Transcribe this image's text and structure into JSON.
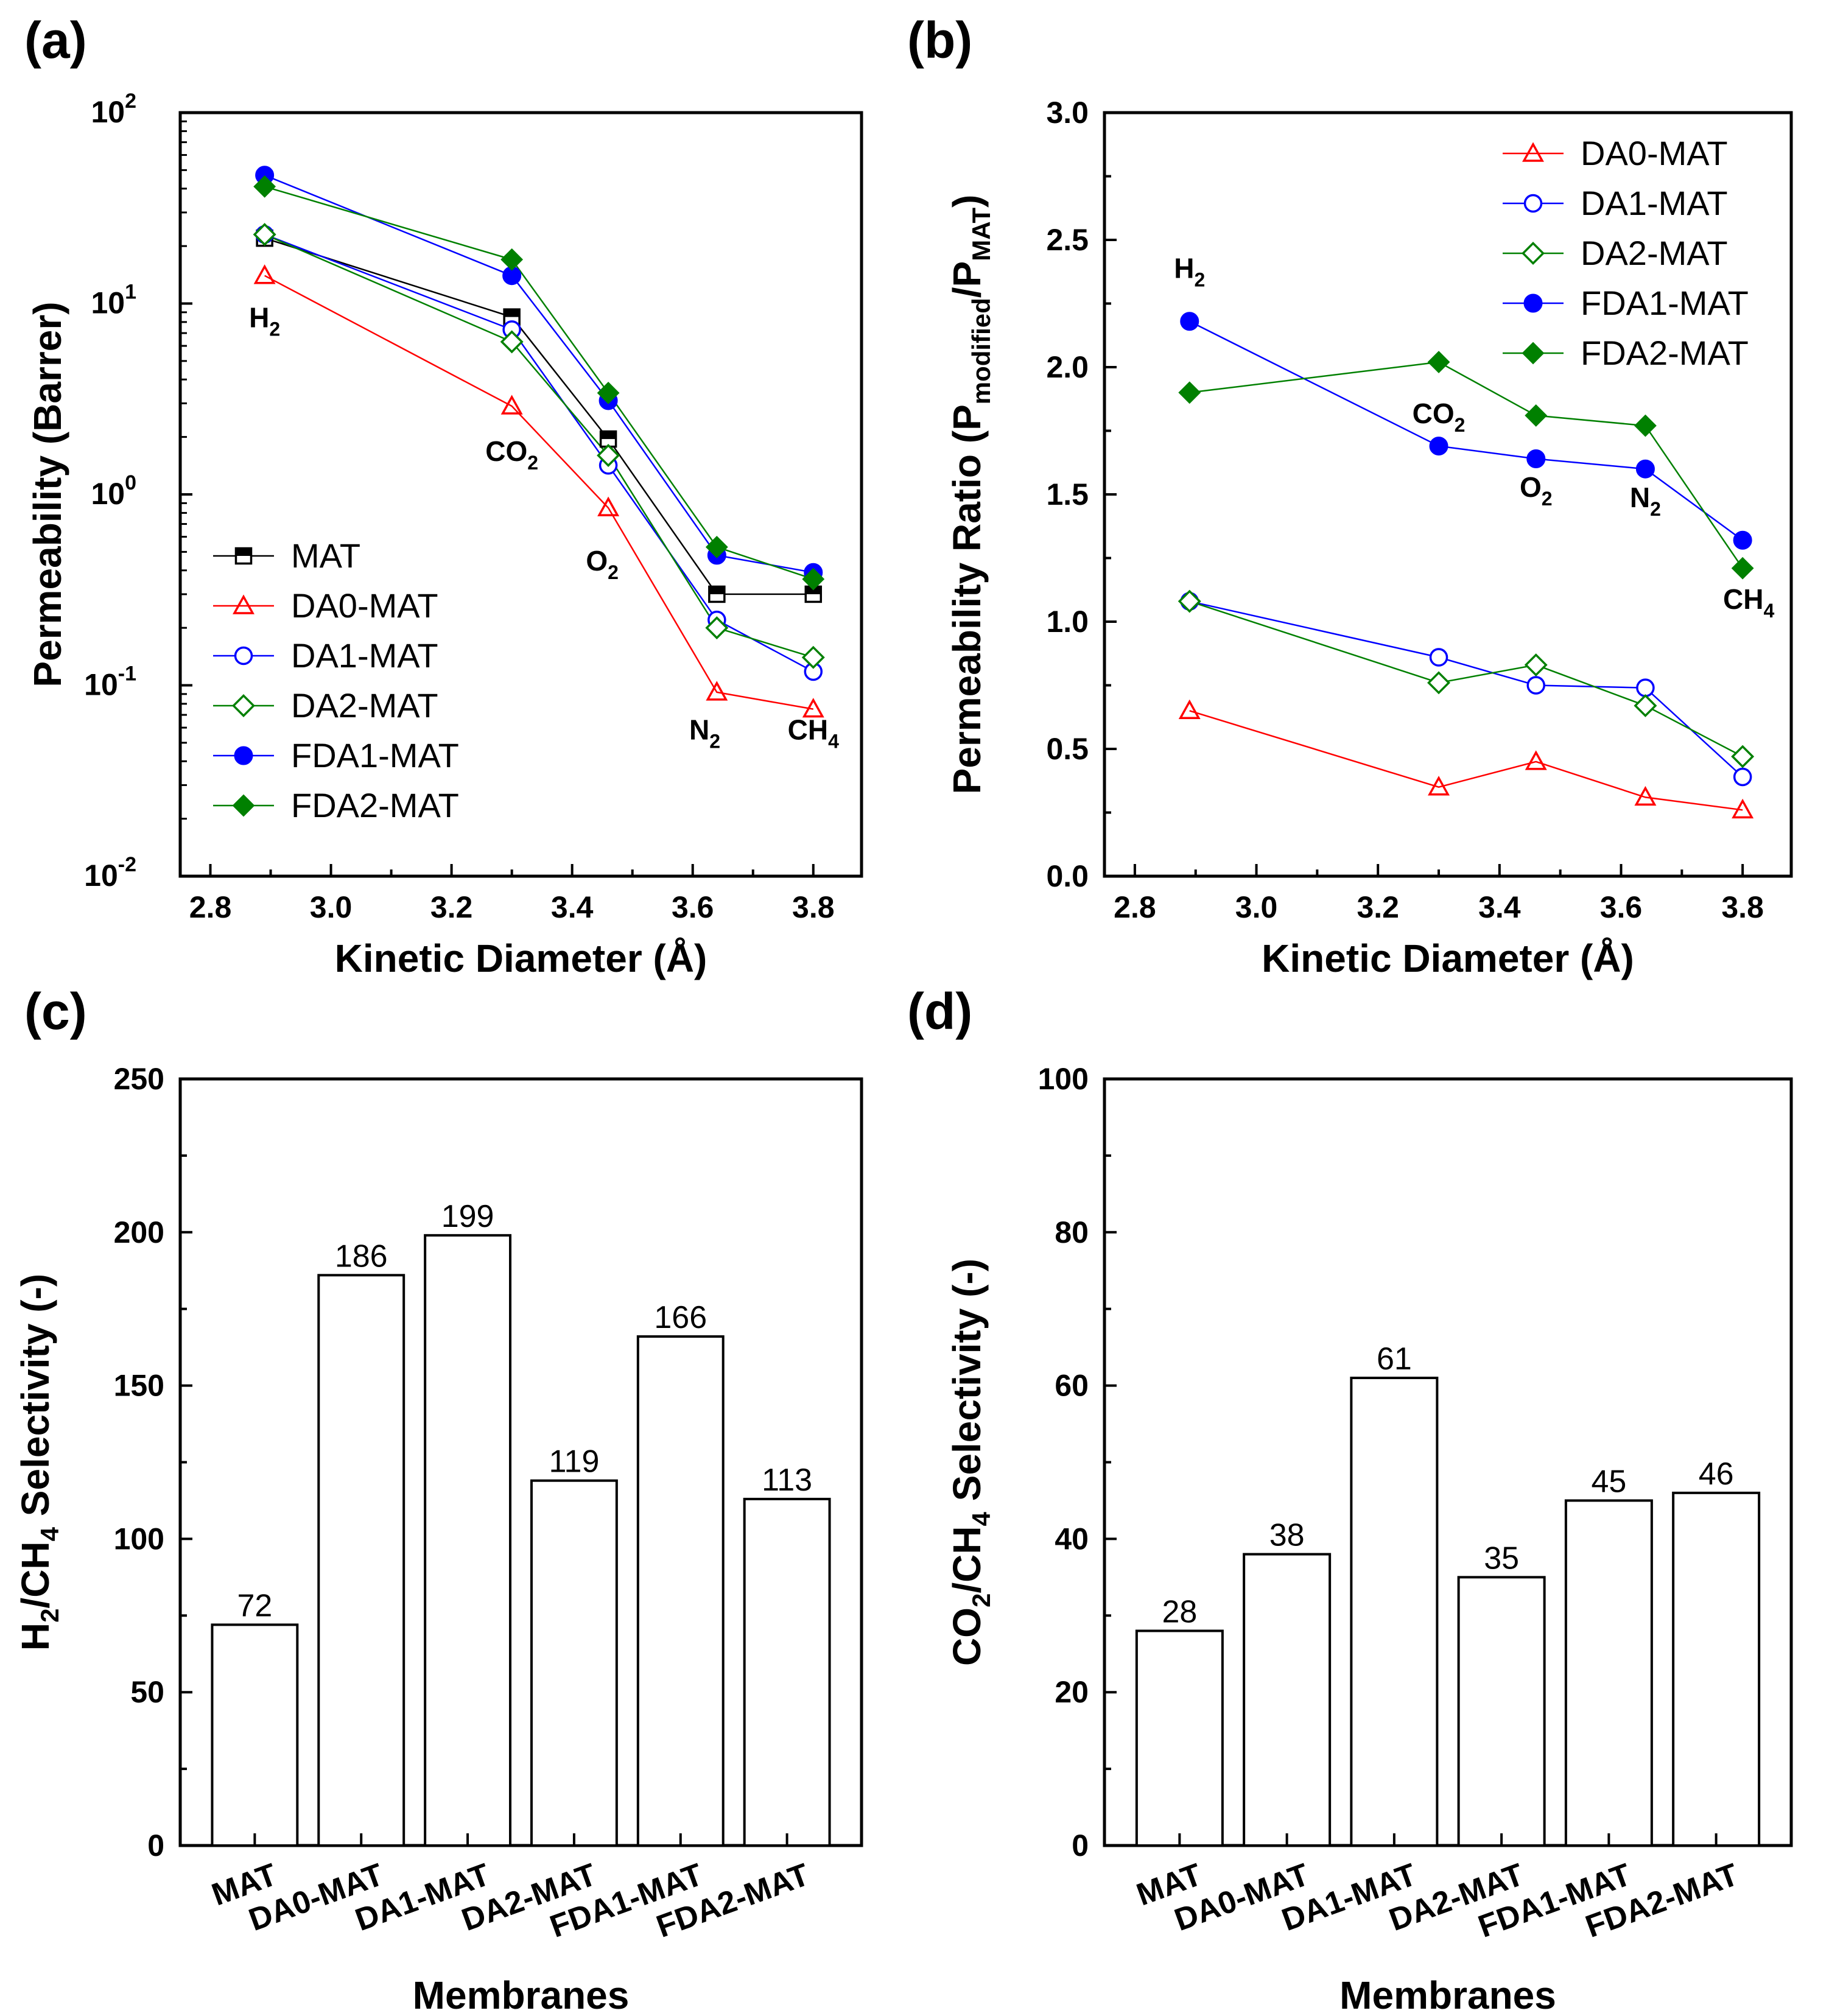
{
  "chart_data": [
    {
      "panel": "(a)",
      "type": "line",
      "ylabel": "Permeability (Barrer)",
      "xlabel": "Kinetic Diameter (Å)",
      "xlim": [
        2.75,
        3.88
      ],
      "ylim": [
        0.01,
        100
      ],
      "yscale": "log",
      "xticks": [
        "2.8",
        "3.0",
        "3.2",
        "3.4",
        "3.6",
        "3.8"
      ],
      "yticks": [
        {
          "value": 0.01,
          "base": "10",
          "exp": "-2"
        },
        {
          "value": 0.1,
          "base": "10",
          "exp": "-1"
        },
        {
          "value": 1,
          "base": "10",
          "exp": "0"
        },
        {
          "value": 10,
          "base": "10",
          "exp": "1"
        },
        {
          "value": 100,
          "base": "10",
          "exp": "2"
        }
      ],
      "x": [
        2.89,
        3.3,
        3.46,
        3.64,
        3.8
      ],
      "series": [
        {
          "name": "MAT",
          "values": [
            22,
            8.5,
            1.95,
            0.3,
            0.3
          ],
          "marker": "square-half",
          "color": "#000000"
        },
        {
          "name": "DA0-MAT",
          "values": [
            14,
            2.9,
            0.85,
            0.092,
            0.075
          ],
          "marker": "triangle-open",
          "color": "#ff0000"
        },
        {
          "name": "DA1-MAT",
          "values": [
            23,
            7.3,
            1.42,
            0.22,
            0.118
          ],
          "marker": "circle-open",
          "color": "#0000ff"
        },
        {
          "name": "DA2-MAT",
          "values": [
            23,
            6.3,
            1.6,
            0.2,
            0.14
          ],
          "marker": "diamond-open",
          "color": "#008000"
        },
        {
          "name": "FDA1-MAT",
          "values": [
            47,
            14,
            3.1,
            0.48,
            0.39
          ],
          "marker": "circle-filled",
          "color": "#0000ff"
        },
        {
          "name": "FDA2-MAT",
          "values": [
            41,
            17,
            3.4,
            0.53,
            0.36
          ],
          "marker": "diamond-filled",
          "color": "#008000"
        }
      ],
      "annotations": [
        {
          "base": "H",
          "sub": "2",
          "x": 2.89,
          "y": 7.5
        },
        {
          "base": "CO",
          "sub": "2",
          "x": 3.3,
          "y": 1.5
        },
        {
          "base": "O",
          "sub": "2",
          "x": 3.45,
          "y": 0.4
        },
        {
          "base": "N",
          "sub": "2",
          "x": 3.62,
          "y": 0.052
        },
        {
          "base": "CH",
          "sub": "4",
          "x": 3.8,
          "y": 0.052
        }
      ],
      "legend": "bottom-left"
    },
    {
      "panel": "(b)",
      "type": "line",
      "ylabel": "Permeability Ratio (P",
      "ylabel_sub1": "modified",
      "ylabel_mid": "/P",
      "ylabel_sub2": "MAT",
      "ylabel_end": ")",
      "xlabel": "Kinetic Diameter (Å)",
      "xlim": [
        2.75,
        3.88
      ],
      "ylim": [
        0,
        3
      ],
      "xticks": [
        "2.8",
        "3.0",
        "3.2",
        "3.4",
        "3.6",
        "3.8"
      ],
      "yticks": [
        "0.0",
        "0.5",
        "1.0",
        "1.5",
        "2.0",
        "2.5",
        "3.0"
      ],
      "x": [
        2.89,
        3.3,
        3.46,
        3.64,
        3.8
      ],
      "series": [
        {
          "name": "DA0-MAT",
          "values": [
            0.65,
            0.35,
            0.45,
            0.31,
            0.26
          ],
          "marker": "triangle-open",
          "color": "#ff0000"
        },
        {
          "name": "DA1-MAT",
          "values": [
            1.08,
            0.86,
            0.75,
            0.74,
            0.39
          ],
          "marker": "circle-open",
          "color": "#0000ff"
        },
        {
          "name": "DA2-MAT",
          "values": [
            1.08,
            0.76,
            0.83,
            0.67,
            0.47
          ],
          "marker": "diamond-open",
          "color": "#008000"
        },
        {
          "name": "FDA1-MAT",
          "values": [
            2.18,
            1.69,
            1.64,
            1.6,
            1.32
          ],
          "marker": "circle-filled",
          "color": "#0000ff"
        },
        {
          "name": "FDA2-MAT",
          "values": [
            1.9,
            2.02,
            1.81,
            1.77,
            1.21
          ],
          "marker": "diamond-filled",
          "color": "#008000"
        }
      ],
      "annotations": [
        {
          "base": "H",
          "sub": "2",
          "x": 2.89,
          "y": 2.35
        },
        {
          "base": "CO",
          "sub": "2",
          "x": 3.3,
          "y": 1.78
        },
        {
          "base": "O",
          "sub": "2",
          "x": 3.46,
          "y": 1.49
        },
        {
          "base": "N",
          "sub": "2",
          "x": 3.64,
          "y": 1.45
        },
        {
          "base": "CH",
          "sub": "4",
          "x": 3.81,
          "y": 1.05
        }
      ],
      "legend": "top-right"
    },
    {
      "panel": "(c)",
      "type": "bar",
      "ylabel": "H",
      "ylabel_sub1": "2",
      "ylabel_mid": "/CH",
      "ylabel_sub2": "4",
      "ylabel_end": " Selectivity (-)",
      "xlabel": "Membranes",
      "categories": [
        "MAT",
        "DA0-MAT",
        "DA1-MAT",
        "DA2-MAT",
        "FDA1-MAT",
        "FDA2-MAT"
      ],
      "values": [
        72,
        186,
        199,
        119,
        166,
        113
      ],
      "ylim": [
        0,
        250
      ],
      "yticks": [
        "0",
        "50",
        "100",
        "150",
        "200",
        "250"
      ]
    },
    {
      "panel": "(d)",
      "type": "bar",
      "ylabel": "CO",
      "ylabel_sub1": "2",
      "ylabel_mid": "/CH",
      "ylabel_sub2": "4",
      "ylabel_end": " Selectivity (-)",
      "xlabel": "Membranes",
      "categories": [
        "MAT",
        "DA0-MAT",
        "DA1-MAT",
        "DA2-MAT",
        "FDA1-MAT",
        "FDA2-MAT"
      ],
      "values": [
        28,
        38,
        61,
        35,
        45,
        46
      ],
      "ylim": [
        0,
        100
      ],
      "yticks": [
        "0",
        "20",
        "40",
        "60",
        "80",
        "100"
      ]
    }
  ]
}
